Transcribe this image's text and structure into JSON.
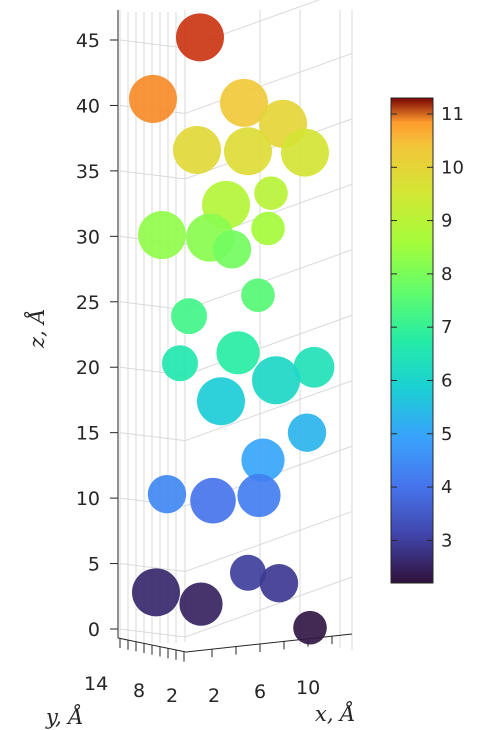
{
  "chart_data": {
    "type": "scatter",
    "projection": "3d",
    "zlabel": "z, Å",
    "ylabel": "y, Å",
    "xlabel": "x, Å",
    "zlim": [
      0,
      46
    ],
    "z_ticks": [
      "0",
      "5",
      "10",
      "15",
      "20",
      "25",
      "30",
      "35",
      "40",
      "45"
    ],
    "x_ticks": [
      "2",
      "6",
      "10"
    ],
    "y_ticks": [
      "14",
      "8",
      "2"
    ],
    "grid": true,
    "colormap": "turbo",
    "colorbar": {
      "range": [
        2.2,
        11.3
      ],
      "ticks": [
        "3",
        "4",
        "5",
        "6",
        "7",
        "8",
        "9",
        "10",
        "11"
      ],
      "placement": "right"
    },
    "points": [
      {
        "z": 45.2,
        "color_value": 11.0,
        "size": 1.0
      },
      {
        "z": 40.5,
        "color_value": 10.4,
        "size": 1.0
      },
      {
        "z": 40.2,
        "color_value": 10.3,
        "size": 1.0
      },
      {
        "z": 38.6,
        "color_value": 10.0,
        "size": 1.0
      },
      {
        "z": 36.6,
        "color_value": 9.9,
        "size": 1.0
      },
      {
        "z": 36.5,
        "color_value": 9.8,
        "size": 1.0
      },
      {
        "z": 36.4,
        "color_value": 9.6,
        "size": 1.0
      },
      {
        "z": 33.3,
        "color_value": 9.0,
        "size": 0.7
      },
      {
        "z": 32.4,
        "color_value": 8.9,
        "size": 1.0
      },
      {
        "z": 30.6,
        "color_value": 8.6,
        "size": 0.7
      },
      {
        "z": 30.1,
        "color_value": 8.3,
        "size": 1.0
      },
      {
        "z": 29.9,
        "color_value": 8.2,
        "size": 1.0
      },
      {
        "z": 29.0,
        "color_value": 7.9,
        "size": 0.8
      },
      {
        "z": 25.5,
        "color_value": 7.5,
        "size": 0.7
      },
      {
        "z": 23.9,
        "color_value": 7.2,
        "size": 0.75
      },
      {
        "z": 21.1,
        "color_value": 6.8,
        "size": 0.9
      },
      {
        "z": 20.3,
        "color_value": 6.6,
        "size": 0.75
      },
      {
        "z": 20.0,
        "color_value": 6.4,
        "size": 0.85
      },
      {
        "z": 19.0,
        "color_value": 6.1,
        "size": 1.0
      },
      {
        "z": 17.4,
        "color_value": 5.8,
        "size": 1.0
      },
      {
        "z": 15.0,
        "color_value": 5.3,
        "size": 0.8
      },
      {
        "z": 12.9,
        "color_value": 5.0,
        "size": 0.9
      },
      {
        "z": 10.3,
        "color_value": 4.4,
        "size": 0.8
      },
      {
        "z": 10.2,
        "color_value": 4.2,
        "size": 0.9
      },
      {
        "z": 9.8,
        "color_value": 4.0,
        "size": 0.95
      },
      {
        "z": 4.3,
        "color_value": 3.0,
        "size": 0.75
      },
      {
        "z": 3.5,
        "color_value": 2.9,
        "size": 0.8
      },
      {
        "z": 2.8,
        "color_value": 2.6,
        "size": 1.0
      },
      {
        "z": 1.9,
        "color_value": 2.5,
        "size": 0.9
      },
      {
        "z": 0.1,
        "color_value": 2.3,
        "size": 0.7
      }
    ]
  }
}
